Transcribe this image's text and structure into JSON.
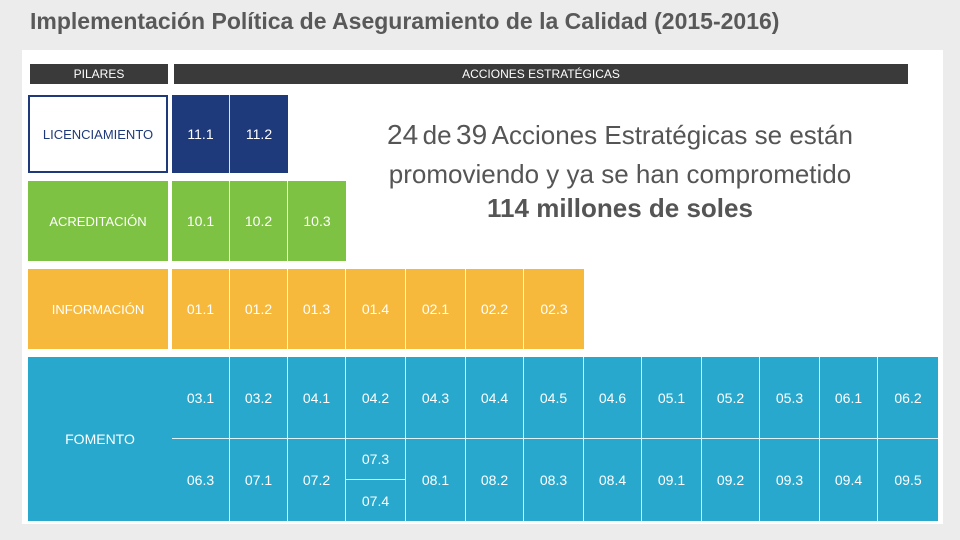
{
  "title": "Implementación Política de Aseguramiento de la Calidad (2015-2016)",
  "headers": {
    "pilares": "PILARES",
    "acciones": "ACCIONES ESTRATÉGICAS"
  },
  "rows": {
    "licenciamiento": {
      "label": "LICENCIAMIENTO",
      "cells": [
        "11.1",
        "11.2"
      ]
    },
    "acreditacion": {
      "label": "ACREDITACIÓN",
      "cells": [
        "10.1",
        "10.2",
        "10.3"
      ]
    },
    "informacion": {
      "label": "INFORMACIÓN",
      "cells": [
        "01.1",
        "01.2",
        "01.3",
        "01.4",
        "02.1",
        "02.2",
        "02.3"
      ]
    },
    "fomento": {
      "label": "FOMENTO",
      "row1": [
        "03.1",
        "03.2",
        "04.1",
        "04.2",
        "04.3",
        "04.4",
        "04.5",
        "04.6",
        "05.1",
        "05.2",
        "05.3",
        "06.1",
        "06.2"
      ],
      "row2": [
        "06.3",
        "07.1",
        "07.2",
        "07.3",
        "07.4",
        "08.1",
        "08.2",
        "08.3",
        "08.4",
        "09.1",
        "09.2",
        "09.3",
        "09.4",
        "09.5"
      ]
    }
  },
  "statement": {
    "count": "24",
    "of": "de",
    "total": "39",
    "text1": "Acciones Estratégicas se están",
    "line2": "promoviendo y ya se han comprometido",
    "line3": "114 millones de soles"
  },
  "colors": {
    "navy": "#1f3a7a",
    "green": "#7dc242",
    "yellow": "#f6b93b",
    "blue": "#27a8cc"
  }
}
